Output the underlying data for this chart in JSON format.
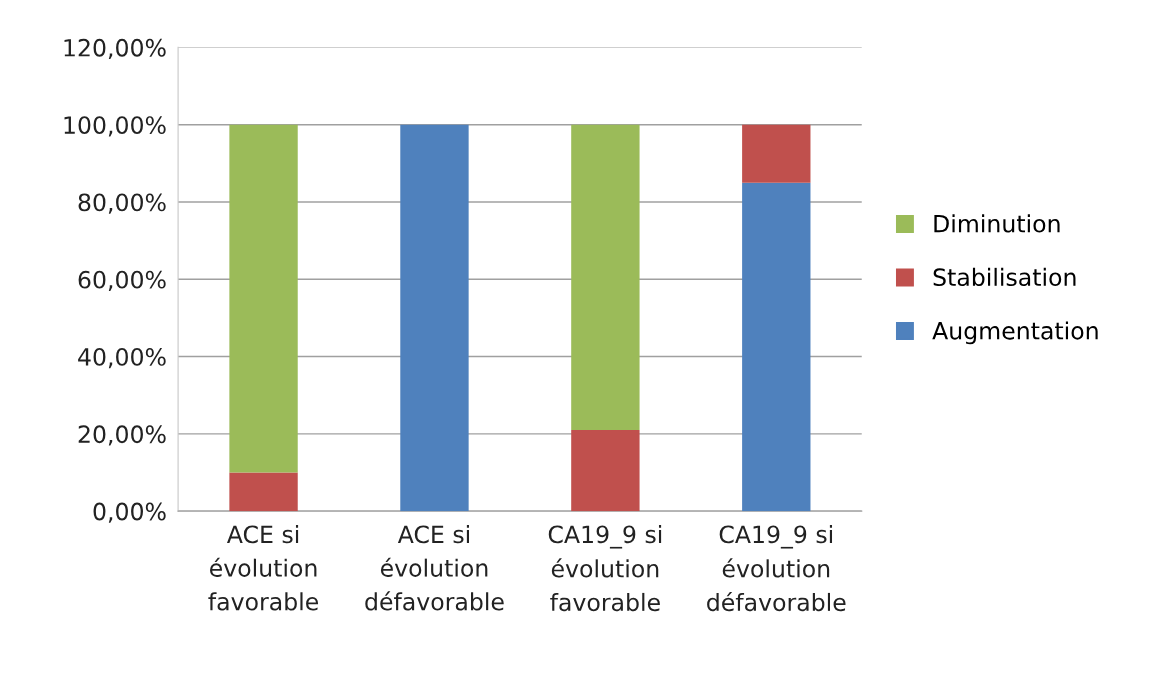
{
  "chart_data": {
    "type": "bar",
    "stacked": true,
    "categories": [
      "ACE si\névolution\nfavorable",
      "ACE si\névolution\ndéfavorable",
      "CA19_9 si\névolution\nfavorable",
      "CA19_9 si\névolution\ndéfavorable"
    ],
    "series": [
      {
        "name": "Augmentation",
        "color": "#4f81bd",
        "values": [
          0,
          100,
          0,
          85
        ]
      },
      {
        "name": "Stabilisation",
        "color": "#c0504d",
        "values": [
          10,
          0,
          21,
          15
        ]
      },
      {
        "name": "Diminution",
        "color": "#9bbb59",
        "values": [
          90,
          0,
          79,
          0
        ]
      }
    ],
    "ylim": [
      0,
      120
    ],
    "yticks": [
      {
        "value": 0,
        "label": "0,00%"
      },
      {
        "value": 20,
        "label": "20,00%"
      },
      {
        "value": 40,
        "label": "40,00%"
      },
      {
        "value": 60,
        "label": "60,00%"
      },
      {
        "value": 80,
        "label": "80,00%"
      },
      {
        "value": 100,
        "label": "100,00%"
      },
      {
        "value": 120,
        "label": "120,00%"
      }
    ],
    "grid": "y",
    "legend": "right"
  }
}
